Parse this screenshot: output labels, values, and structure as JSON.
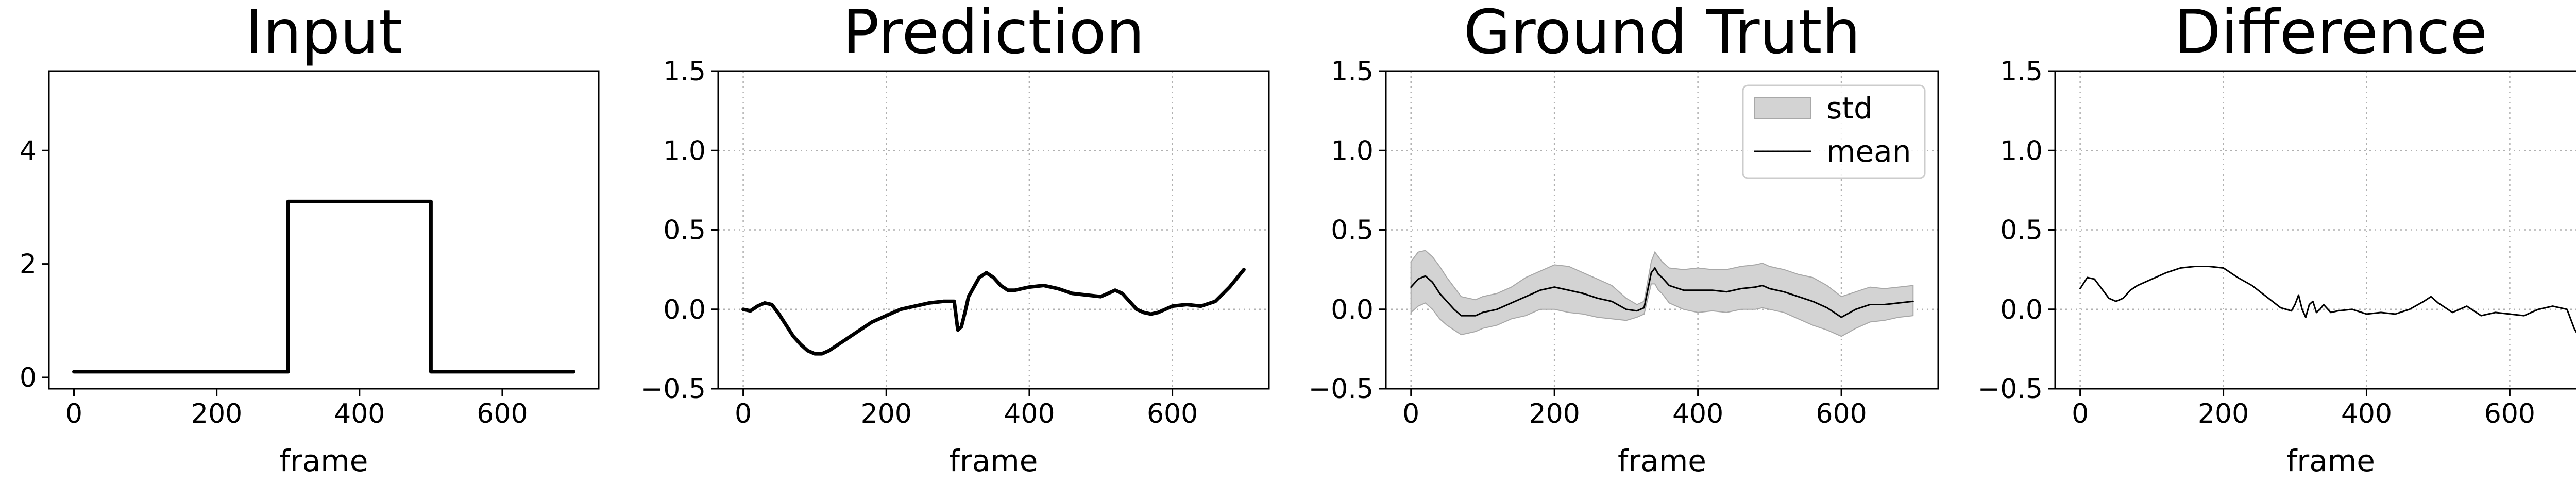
{
  "chart_data": [
    {
      "type": "line",
      "title": "Input",
      "xlabel": "frame",
      "ylabel": "",
      "xlim": [
        -35,
        735
      ],
      "ylim": [
        -0.2,
        5.4
      ],
      "xticks": [
        0,
        200,
        400,
        600
      ],
      "yticks": [
        0,
        2,
        4
      ],
      "ytick_labels": [
        "0",
        "2",
        "4"
      ],
      "grid": false,
      "series": [
        {
          "x": [
            0,
            300,
            300,
            500,
            500,
            700
          ],
          "y": [
            0.1,
            0.1,
            3.1,
            3.1,
            0.1,
            0.1
          ]
        }
      ]
    },
    {
      "type": "line",
      "title": "Prediction",
      "xlabel": "frame",
      "ylabel": "",
      "xlim": [
        -35,
        735
      ],
      "ylim": [
        -0.5,
        1.5
      ],
      "xticks": [
        0,
        200,
        400,
        600
      ],
      "yticks": [
        -0.5,
        0.0,
        0.5,
        1.0,
        1.5
      ],
      "ytick_labels": [
        "−0.5",
        "0.0",
        "0.5",
        "1.0",
        "1.5"
      ],
      "grid": true,
      "series": [
        {
          "x": [
            0,
            10,
            20,
            30,
            40,
            50,
            60,
            70,
            80,
            90,
            100,
            110,
            120,
            130,
            140,
            150,
            160,
            170,
            180,
            190,
            200,
            220,
            240,
            260,
            280,
            295,
            300,
            305,
            310,
            315,
            320,
            330,
            340,
            350,
            360,
            370,
            380,
            390,
            400,
            420,
            440,
            460,
            480,
            500,
            510,
            520,
            530,
            540,
            550,
            560,
            570,
            580,
            590,
            600,
            620,
            640,
            660,
            680,
            700
          ],
          "y": [
            0.0,
            -0.01,
            0.02,
            0.04,
            0.03,
            -0.03,
            -0.1,
            -0.17,
            -0.22,
            -0.26,
            -0.28,
            -0.28,
            -0.26,
            -0.23,
            -0.2,
            -0.17,
            -0.14,
            -0.11,
            -0.08,
            -0.06,
            -0.04,
            0.0,
            0.02,
            0.04,
            0.05,
            0.05,
            -0.13,
            -0.11,
            -0.02,
            0.08,
            0.12,
            0.2,
            0.23,
            0.2,
            0.15,
            0.12,
            0.12,
            0.13,
            0.14,
            0.15,
            0.13,
            0.1,
            0.09,
            0.08,
            0.1,
            0.12,
            0.1,
            0.05,
            0.0,
            -0.02,
            -0.03,
            -0.02,
            0.0,
            0.02,
            0.03,
            0.02,
            0.05,
            0.14,
            0.25
          ]
        }
      ]
    },
    {
      "type": "area",
      "title": "Ground Truth",
      "xlabel": "frame",
      "ylabel": "",
      "xlim": [
        -35,
        735
      ],
      "ylim": [
        -0.5,
        1.5
      ],
      "xticks": [
        0,
        200,
        400,
        600
      ],
      "yticks": [
        -0.5,
        0.0,
        0.5,
        1.0,
        1.5
      ],
      "ytick_labels": [
        "−0.5",
        "0.0",
        "0.5",
        "1.0",
        "1.5"
      ],
      "grid": true,
      "legend_position": "top-right",
      "series": [
        {
          "name": "std",
          "x": [
            0,
            10,
            20,
            30,
            40,
            50,
            60,
            70,
            80,
            90,
            100,
            120,
            140,
            160,
            180,
            200,
            220,
            240,
            260,
            280,
            300,
            315,
            325,
            335,
            340,
            345,
            350,
            360,
            380,
            400,
            420,
            440,
            460,
            480,
            490,
            500,
            520,
            540,
            560,
            580,
            600,
            620,
            640,
            660,
            680,
            700
          ],
          "upper": [
            0.3,
            0.36,
            0.37,
            0.33,
            0.27,
            0.2,
            0.14,
            0.08,
            0.07,
            0.06,
            0.08,
            0.1,
            0.14,
            0.2,
            0.24,
            0.28,
            0.27,
            0.23,
            0.19,
            0.15,
            0.07,
            0.03,
            0.05,
            0.3,
            0.36,
            0.33,
            0.3,
            0.26,
            0.25,
            0.26,
            0.25,
            0.25,
            0.27,
            0.28,
            0.29,
            0.27,
            0.25,
            0.22,
            0.2,
            0.15,
            0.08,
            0.11,
            0.14,
            0.13,
            0.14,
            0.15
          ],
          "lower": [
            -0.02,
            0.02,
            0.04,
            0.0,
            -0.06,
            -0.1,
            -0.13,
            -0.16,
            -0.15,
            -0.14,
            -0.12,
            -0.1,
            -0.06,
            -0.04,
            0.0,
            0.0,
            -0.02,
            -0.03,
            -0.05,
            -0.06,
            -0.07,
            -0.05,
            -0.03,
            0.16,
            0.16,
            0.12,
            0.1,
            0.04,
            0.0,
            -0.02,
            -0.01,
            -0.02,
            0.0,
            0.0,
            0.01,
            0.0,
            -0.02,
            -0.06,
            -0.1,
            -0.13,
            -0.17,
            -0.12,
            -0.08,
            -0.07,
            -0.05,
            -0.04
          ]
        },
        {
          "name": "mean",
          "x": [
            0,
            10,
            20,
            30,
            40,
            50,
            60,
            70,
            80,
            90,
            100,
            120,
            140,
            160,
            180,
            200,
            220,
            240,
            260,
            280,
            300,
            315,
            325,
            335,
            340,
            345,
            350,
            360,
            380,
            400,
            420,
            440,
            460,
            480,
            490,
            500,
            520,
            540,
            560,
            580,
            600,
            620,
            640,
            660,
            680,
            700
          ],
          "y": [
            0.14,
            0.19,
            0.21,
            0.17,
            0.1,
            0.05,
            0.0,
            -0.04,
            -0.04,
            -0.04,
            -0.02,
            0.0,
            0.04,
            0.08,
            0.12,
            0.14,
            0.12,
            0.1,
            0.07,
            0.05,
            0.0,
            -0.01,
            0.01,
            0.23,
            0.26,
            0.22,
            0.2,
            0.15,
            0.12,
            0.12,
            0.12,
            0.11,
            0.13,
            0.14,
            0.15,
            0.13,
            0.11,
            0.08,
            0.05,
            0.01,
            -0.05,
            0.0,
            0.03,
            0.03,
            0.04,
            0.05
          ]
        }
      ]
    },
    {
      "type": "line",
      "title": "Difference",
      "xlabel": "frame",
      "ylabel": "",
      "xlim": [
        -35,
        735
      ],
      "ylim": [
        -0.5,
        1.5
      ],
      "xticks": [
        0,
        200,
        400,
        600
      ],
      "yticks": [
        -0.5,
        0.0,
        0.5,
        1.0,
        1.5
      ],
      "ytick_labels": [
        "−0.5",
        "0.0",
        "0.5",
        "1.0",
        "1.5"
      ],
      "grid": true,
      "series": [
        {
          "x": [
            0,
            10,
            20,
            30,
            40,
            50,
            60,
            70,
            80,
            100,
            120,
            140,
            160,
            180,
            200,
            220,
            240,
            260,
            280,
            295,
            300,
            305,
            310,
            315,
            320,
            325,
            330,
            335,
            340,
            350,
            360,
            380,
            400,
            420,
            440,
            460,
            480,
            490,
            500,
            520,
            540,
            560,
            580,
            600,
            620,
            640,
            660,
            680,
            690,
            700
          ],
          "y": [
            0.13,
            0.2,
            0.19,
            0.13,
            0.07,
            0.05,
            0.07,
            0.12,
            0.15,
            0.19,
            0.23,
            0.26,
            0.27,
            0.27,
            0.26,
            0.2,
            0.15,
            0.08,
            0.01,
            -0.01,
            0.03,
            0.09,
            0.0,
            -0.05,
            0.03,
            0.05,
            -0.02,
            0.0,
            0.03,
            -0.02,
            -0.01,
            0.0,
            -0.03,
            -0.02,
            -0.03,
            0.0,
            0.05,
            0.08,
            0.04,
            -0.02,
            0.02,
            -0.04,
            -0.02,
            -0.03,
            -0.04,
            0.0,
            0.02,
            0.0,
            -0.12,
            -0.2
          ]
        }
      ]
    }
  ]
}
